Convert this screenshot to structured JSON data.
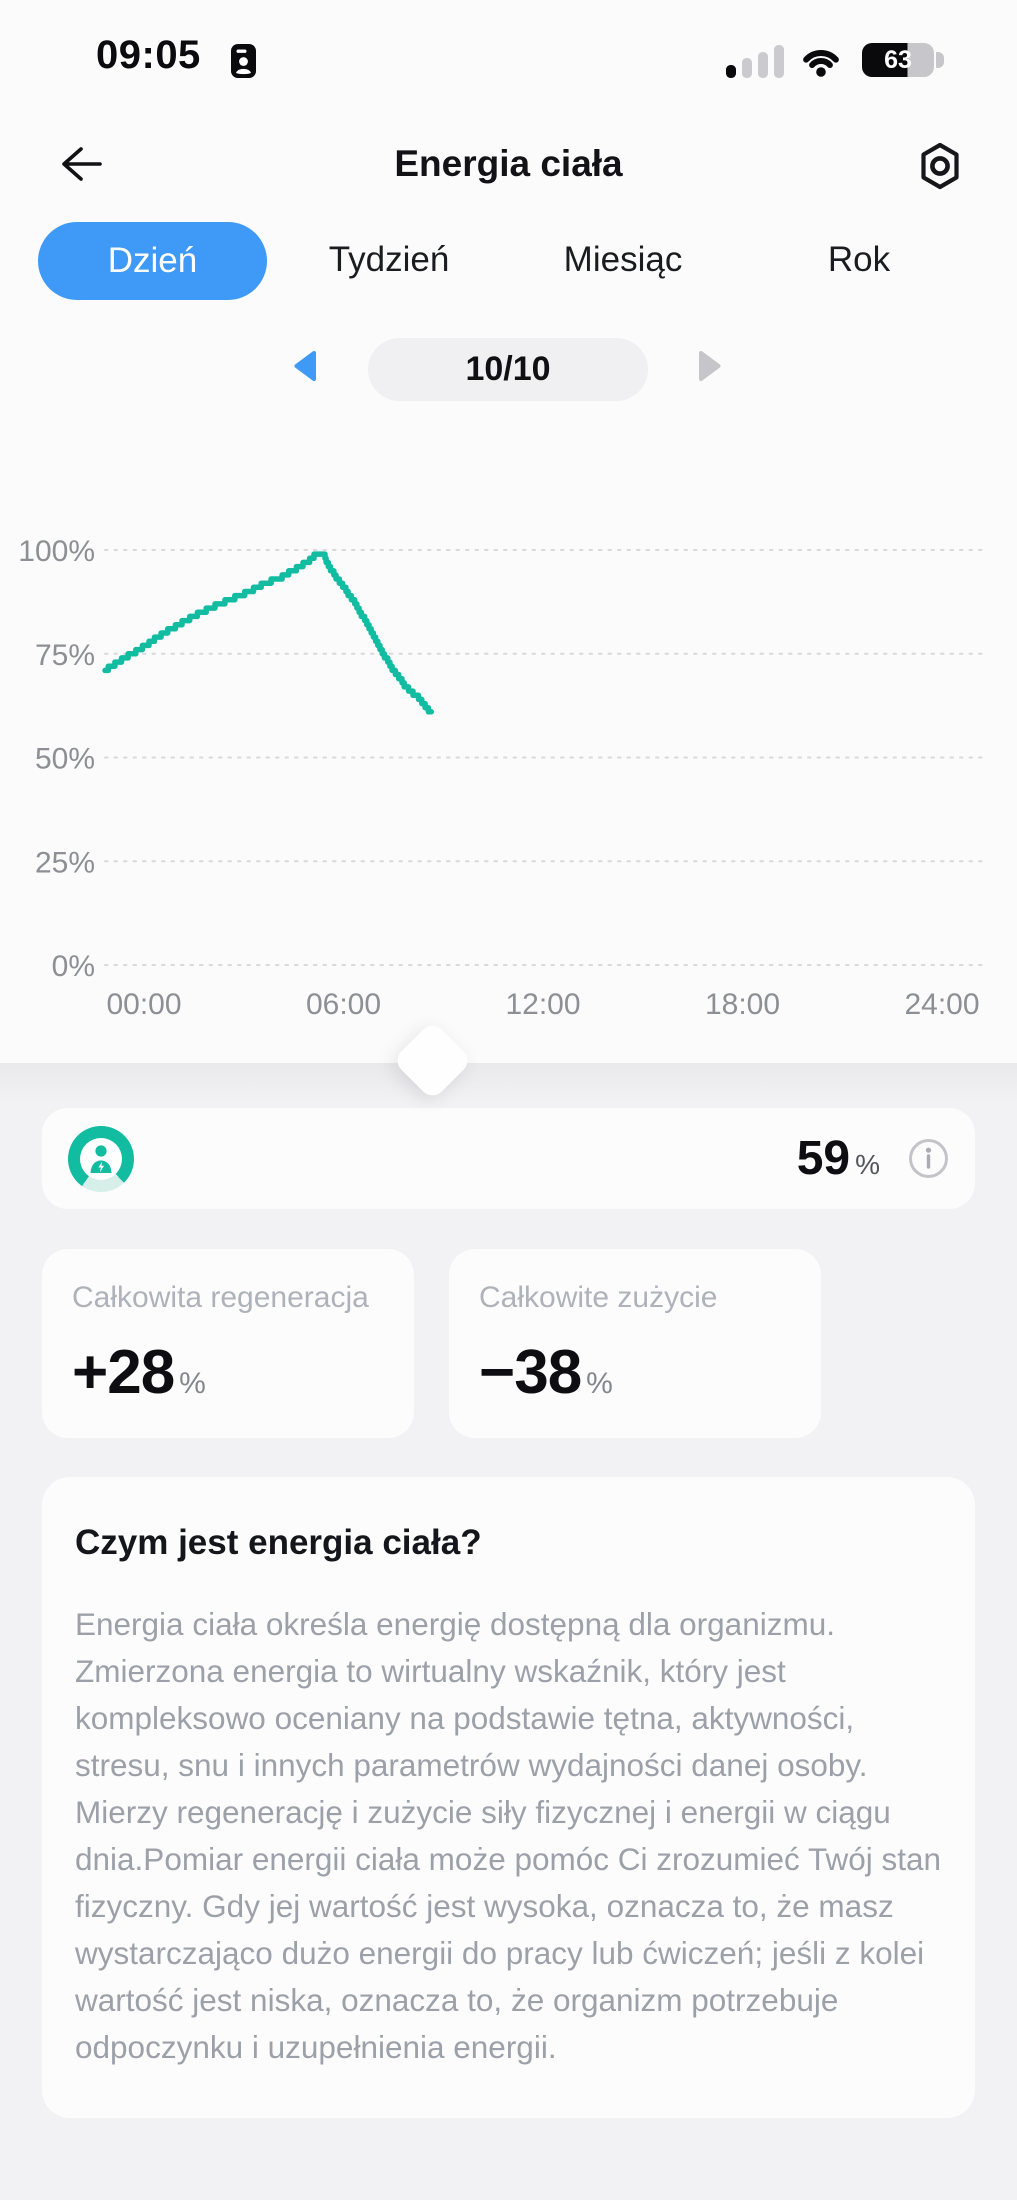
{
  "colors": {
    "blue": "#3E9AF6",
    "teal": "#12BCA1",
    "page_top_bg": "#FBFBFB",
    "page_bottom_bg": "#F2F2F4",
    "card_bg": "#FCFCFD",
    "axis_text": "#8D8F94",
    "battery_black": "#0A0A0C",
    "battery_gray": "#C6C6CB"
  },
  "status_bar": {
    "time": "09:05",
    "battery_percent": 63,
    "battery_label": "63",
    "signal_icon": "signal-bars-1-of-4",
    "wifi_icon": "wifi-full"
  },
  "header": {
    "title": "Energia ciała"
  },
  "tabs": {
    "items": [
      {
        "label": "Dzień",
        "selected": true
      },
      {
        "label": "Tydzień",
        "selected": false
      },
      {
        "label": "Miesiąc",
        "selected": false
      },
      {
        "label": "Rok",
        "selected": false
      }
    ]
  },
  "date_nav": {
    "value": "10/10",
    "prev_icon": "triangle-left-blue",
    "next_icon": "triangle-right-gray"
  },
  "chart_data": {
    "type": "line",
    "style": "stepped",
    "line_color": "#12BCA1",
    "x_ticks": [
      "00:00",
      "06:00",
      "12:00",
      "18:00",
      "24:00"
    ],
    "y_ticks": [
      "100%",
      "75%",
      "50%",
      "25%",
      "0%"
    ],
    "xlim_hours": [
      0,
      24
    ],
    "ylim": [
      0,
      100
    ],
    "grid": "horizontal-dotted",
    "legend": "none",
    "points_hour_percent": [
      [
        0,
        71
      ],
      [
        0.4,
        73.3
      ],
      [
        0.95,
        76.2
      ],
      [
        1.5,
        79.4
      ],
      [
        2.05,
        82.3
      ],
      [
        2.6,
        85
      ],
      [
        3.15,
        87.1
      ],
      [
        3.7,
        89.1
      ],
      [
        4.25,
        91.5
      ],
      [
        4.8,
        93.5
      ],
      [
        5.3,
        95.9
      ],
      [
        5.6,
        97.8
      ],
      [
        5.75,
        99
      ],
      [
        5.95,
        99
      ],
      [
        6.1,
        95.9
      ],
      [
        6.4,
        92.3
      ],
      [
        6.8,
        87.3
      ],
      [
        7.15,
        82
      ],
      [
        7.5,
        76
      ],
      [
        7.9,
        70.5
      ],
      [
        8.2,
        67
      ],
      [
        8.6,
        64
      ],
      [
        8.8,
        61.5
      ],
      [
        8.9,
        60.5
      ]
    ]
  },
  "energy_card": {
    "value": "59",
    "unit": "%",
    "icon": "body-energy-ring-person"
  },
  "stat_cards": [
    {
      "label": "Całkowita regeneracja",
      "value": "+28",
      "unit": "%"
    },
    {
      "label": "Całkowite zużycie",
      "value": "−38",
      "unit": "%"
    }
  ],
  "info_card": {
    "title": "Czym jest energia ciała?",
    "body": "Energia ciała określa energię dostępną dla organizmu. Zmierzona energia to wirtualny wskaźnik, który jest kompleksowo oceniany na podstawie tętna, aktywności, stresu, snu i innych parametrów wydajności danej osoby. Mierzy regenerację i zużycie siły fizycznej i energii w ciągu dnia.Pomiar energii ciała może pomóc Ci zrozumieć Twój stan fizyczny. Gdy jej wartość jest wysoka, oznacza to, że masz wystarczająco dużo energii do pracy lub ćwiczeń; jeśli z kolei wartość jest niska, oznacza to, że organizm potrzebuje odpoczynku i uzupełnienia energii."
  }
}
